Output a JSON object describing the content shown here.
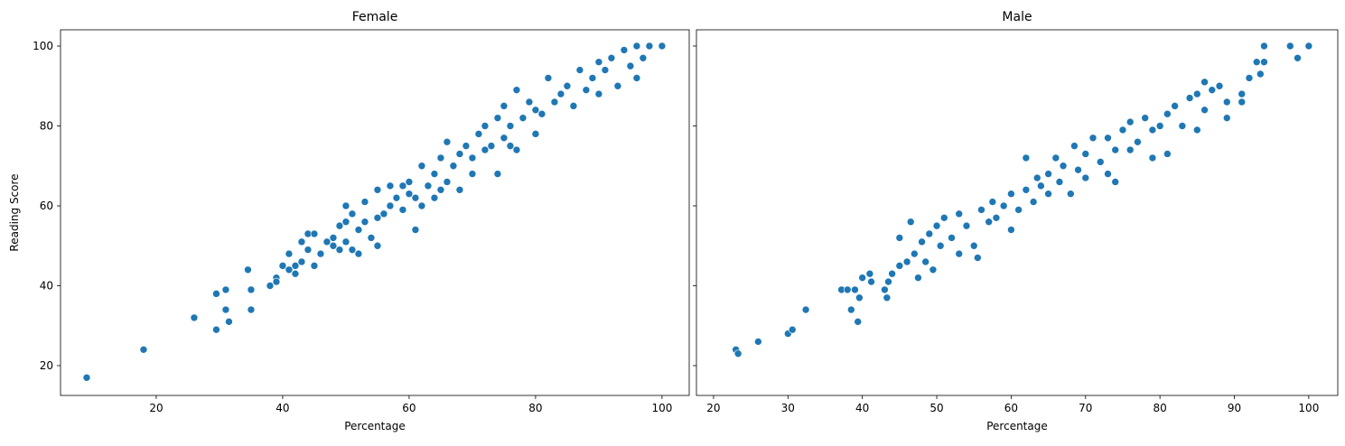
{
  "chart_data": [
    {
      "type": "scatter",
      "title": "Female",
      "x_label": "Percentage",
      "y_label": "Reading Score",
      "color": "#1f77b4",
      "xlim": [
        4.86,
        104.3
      ],
      "ylim": [
        12.54,
        104.07
      ],
      "xticks": [
        20,
        40,
        60,
        80,
        100
      ],
      "yticks": [
        20,
        40,
        60,
        80,
        100
      ],
      "x": [
        9,
        18,
        26,
        29.5,
        29.5,
        31,
        31,
        31.5,
        34.5,
        35,
        35,
        38,
        39,
        39,
        40,
        41,
        41,
        42,
        42,
        43,
        43,
        44,
        44,
        45,
        45,
        46,
        47,
        48,
        48,
        49,
        49,
        50,
        50,
        50,
        51,
        51,
        52,
        52,
        53,
        53,
        54,
        55,
        55,
        55,
        56,
        57,
        57,
        58,
        59,
        60,
        60,
        61,
        61,
        62,
        62,
        63,
        64,
        64,
        65,
        66,
        66,
        67,
        68,
        68,
        69,
        70,
        70,
        71,
        72,
        72,
        73,
        74,
        74,
        75,
        75,
        76,
        77,
        77,
        78,
        79,
        80,
        80,
        81,
        82,
        83,
        84,
        85,
        86,
        87,
        88,
        89,
        90,
        90,
        91,
        92,
        93,
        94,
        95,
        96,
        96,
        97,
        98,
        100,
        76,
        65,
        59
      ],
      "y": [
        17,
        24,
        32,
        29,
        38,
        34,
        39,
        31,
        44,
        39,
        34,
        40,
        42,
        41,
        45,
        44,
        48,
        43,
        45,
        51,
        46,
        53,
        49,
        53,
        45,
        48,
        51,
        52,
        50,
        55,
        49,
        60,
        56,
        51,
        58,
        49,
        48,
        54,
        56,
        61,
        52,
        50,
        57,
        64,
        58,
        60,
        65,
        62,
        59,
        63,
        66,
        54,
        62,
        60,
        70,
        65,
        68,
        62,
        72,
        66,
        76,
        70,
        73,
        64,
        75,
        72,
        68,
        78,
        74,
        80,
        75,
        68,
        82,
        77,
        85,
        80,
        74,
        89,
        82,
        86,
        84,
        78,
        83,
        92,
        86,
        88,
        90,
        85,
        94,
        89,
        92,
        96,
        88,
        94,
        97,
        90,
        99,
        95,
        100,
        92,
        97,
        100,
        100,
        75,
        64,
        65
      ]
    },
    {
      "type": "scatter",
      "title": "Male",
      "x_label": "Percentage",
      "color": "#1f77b4",
      "xlim": [
        17.7,
        103.9
      ],
      "ylim": [
        12.54,
        104.07
      ],
      "xticks": [
        20,
        30,
        40,
        50,
        60,
        70,
        80,
        90,
        100
      ],
      "yticks": [
        20,
        40,
        60,
        80,
        100
      ],
      "x": [
        23,
        23.3,
        26,
        30,
        30.6,
        32.4,
        37.2,
        38,
        38.5,
        39,
        39.4,
        39.6,
        40,
        41,
        41.2,
        43,
        43.3,
        43.5,
        44,
        45,
        45,
        46,
        46.5,
        47,
        47.5,
        48,
        48.5,
        49,
        49.5,
        50,
        50.5,
        51,
        52,
        53,
        53,
        54,
        55,
        55.5,
        56,
        57,
        57.5,
        58,
        59,
        60,
        60,
        61,
        62,
        62,
        63,
        63.5,
        64,
        65,
        65,
        66,
        66.5,
        67,
        68,
        68.5,
        69,
        70,
        70,
        71,
        72,
        73,
        73,
        74,
        74,
        75,
        76,
        76,
        77,
        78,
        79,
        79,
        80,
        81,
        81,
        82,
        83,
        84,
        85,
        85,
        86,
        86,
        87,
        88,
        89,
        89,
        91,
        91,
        92,
        93,
        93.5,
        94,
        94,
        97.5,
        98.5,
        100
      ],
      "y": [
        24,
        23,
        26,
        28,
        29,
        34,
        39,
        39,
        34,
        39,
        31,
        37,
        42,
        43,
        41,
        39,
        37,
        41,
        43,
        45,
        52,
        46,
        56,
        48,
        42,
        51,
        46,
        53,
        44,
        55,
        50,
        57,
        52,
        58,
        48,
        55,
        50,
        47,
        59,
        56,
        61,
        57,
        60,
        54,
        63,
        59,
        72,
        64,
        61,
        67,
        65,
        68,
        63,
        72,
        66,
        70,
        63,
        75,
        69,
        73,
        67,
        77,
        71,
        68,
        77,
        66,
        74,
        79,
        74,
        81,
        76,
        82,
        72,
        79,
        80,
        83,
        73,
        85,
        80,
        87,
        79,
        88,
        84,
        91,
        89,
        90,
        82,
        86,
        86,
        88,
        92,
        96,
        93,
        96,
        100,
        100,
        97,
        100
      ]
    }
  ]
}
